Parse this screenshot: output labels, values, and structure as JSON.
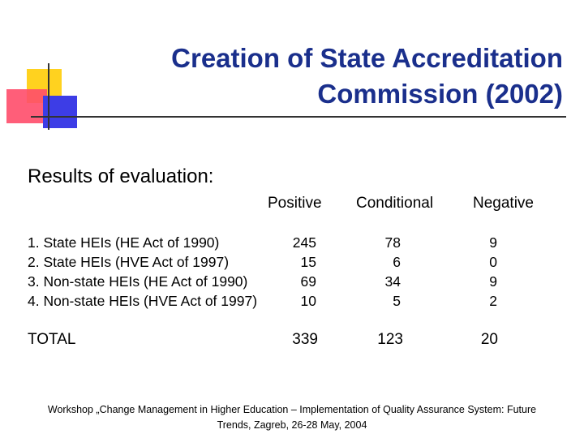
{
  "logo": {
    "yellow": "#ffd21f",
    "red": "#ff4d6a",
    "blue": "#3d3de6"
  },
  "title": {
    "line1": "Creation of State Accreditation",
    "line2": "Commission (2002)",
    "color": "#1a2f8c"
  },
  "subtitle": "Results of evaluation:",
  "table": {
    "headers": {
      "positive": "Positive",
      "conditional": "Conditional",
      "negative": "Negative"
    },
    "rows": [
      {
        "label": "1. State HEIs (HE Act of 1990)",
        "positive": "245",
        "conditional": "78",
        "negative": "9"
      },
      {
        "label": "2. State HEIs (HVE Act of 1997)",
        "positive": "15",
        "conditional": "6",
        "negative": "0"
      },
      {
        "label": "3. Non-state HEIs (HE Act of 1990)",
        "positive": "69",
        "conditional": "34",
        "negative": "9"
      },
      {
        "label": "4. Non-state HEIs (HVE Act of 1997)",
        "positive": "10",
        "conditional": "5",
        "negative": "2"
      }
    ],
    "total": {
      "label": "TOTAL",
      "positive": "339",
      "conditional": "123",
      "negative": "20"
    }
  },
  "footer": {
    "line1": "Workshop „Change Management in Higher Education – Implementation of Quality Assurance System: Future",
    "line2": "Trends, Zagreb, 26-28 May, 2004"
  }
}
